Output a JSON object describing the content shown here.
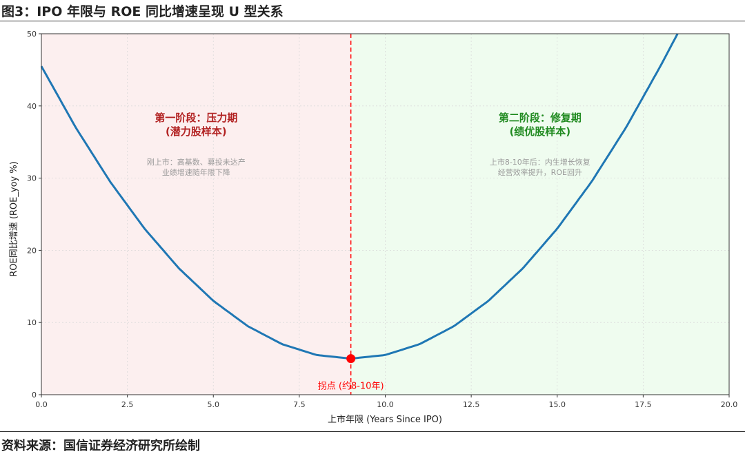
{
  "figure": {
    "title": "图3：IPO 年限与 ROE 同比增速呈现 U 型关系",
    "source": "资料来源：国信证券经济研究所绘制"
  },
  "colors": {
    "curve": "#1f77b4",
    "stage1_bg": "#fcefef",
    "stage2_bg": "#effcef",
    "stage1_text": "#b22222",
    "stage2_text": "#228b22",
    "note_text": "#999999",
    "marker": "#ff0000",
    "vline": "#ff0000"
  },
  "chart_data": {
    "type": "line",
    "xlabel": "上市年限 (Years Since IPO)",
    "ylabel": "ROE同比增速 (ROE_yoy %)",
    "xlim": [
      0,
      20
    ],
    "ylim": [
      0,
      50
    ],
    "xticks": [
      0,
      2.5,
      5,
      7.5,
      10,
      12.5,
      15,
      17.5,
      20
    ],
    "xtick_labels": [
      "0.0",
      "2.5",
      "5.0",
      "7.5",
      "10.0",
      "12.5",
      "15.0",
      "17.5",
      "20.0"
    ],
    "yticks": [
      0,
      10,
      20,
      30,
      40,
      50
    ],
    "ytick_labels": [
      "0",
      "10",
      "20",
      "30",
      "40",
      "50"
    ],
    "grid": true,
    "series": [
      {
        "x": [
          0,
          1,
          2,
          3,
          4,
          5,
          6,
          7,
          8,
          9,
          10,
          11,
          12,
          13,
          14,
          15,
          16,
          17,
          18,
          18.5
        ],
        "values": [
          45.5,
          37.0,
          29.5,
          23.0,
          17.5,
          13.0,
          9.5,
          7.0,
          5.5,
          5.0,
          5.5,
          7.0,
          9.5,
          13.0,
          17.5,
          23.0,
          29.5,
          37.0,
          45.5,
          50.0
        ]
      }
    ],
    "regions": [
      {
        "x0": 0,
        "x1": 9,
        "color": "#fcefef"
      },
      {
        "x0": 9,
        "x1": 20,
        "color": "#effcef"
      }
    ],
    "vline": {
      "x": 9
    },
    "turning_point": {
      "x": 9,
      "y": 5,
      "label": "拐点 (约8-10年)"
    },
    "annotations": {
      "stage1": {
        "title_line1": "第一阶段：压力期",
        "title_line2": "(潜力股样本)",
        "note_line1": "刚上市：高基数、募投未达产",
        "note_line2": "业绩增速随年限下降",
        "x": 4.5,
        "y_title": 37.5,
        "y_note": 31.5
      },
      "stage2": {
        "title_line1": "第二阶段：修复期",
        "title_line2": "(绩优股样本)",
        "note_line1": "上市8-10年后：内生增长恢复",
        "note_line2": "经营效率提升，ROE回升",
        "x": 14.5,
        "y_title": 37.5,
        "y_note": 31.5
      }
    }
  }
}
